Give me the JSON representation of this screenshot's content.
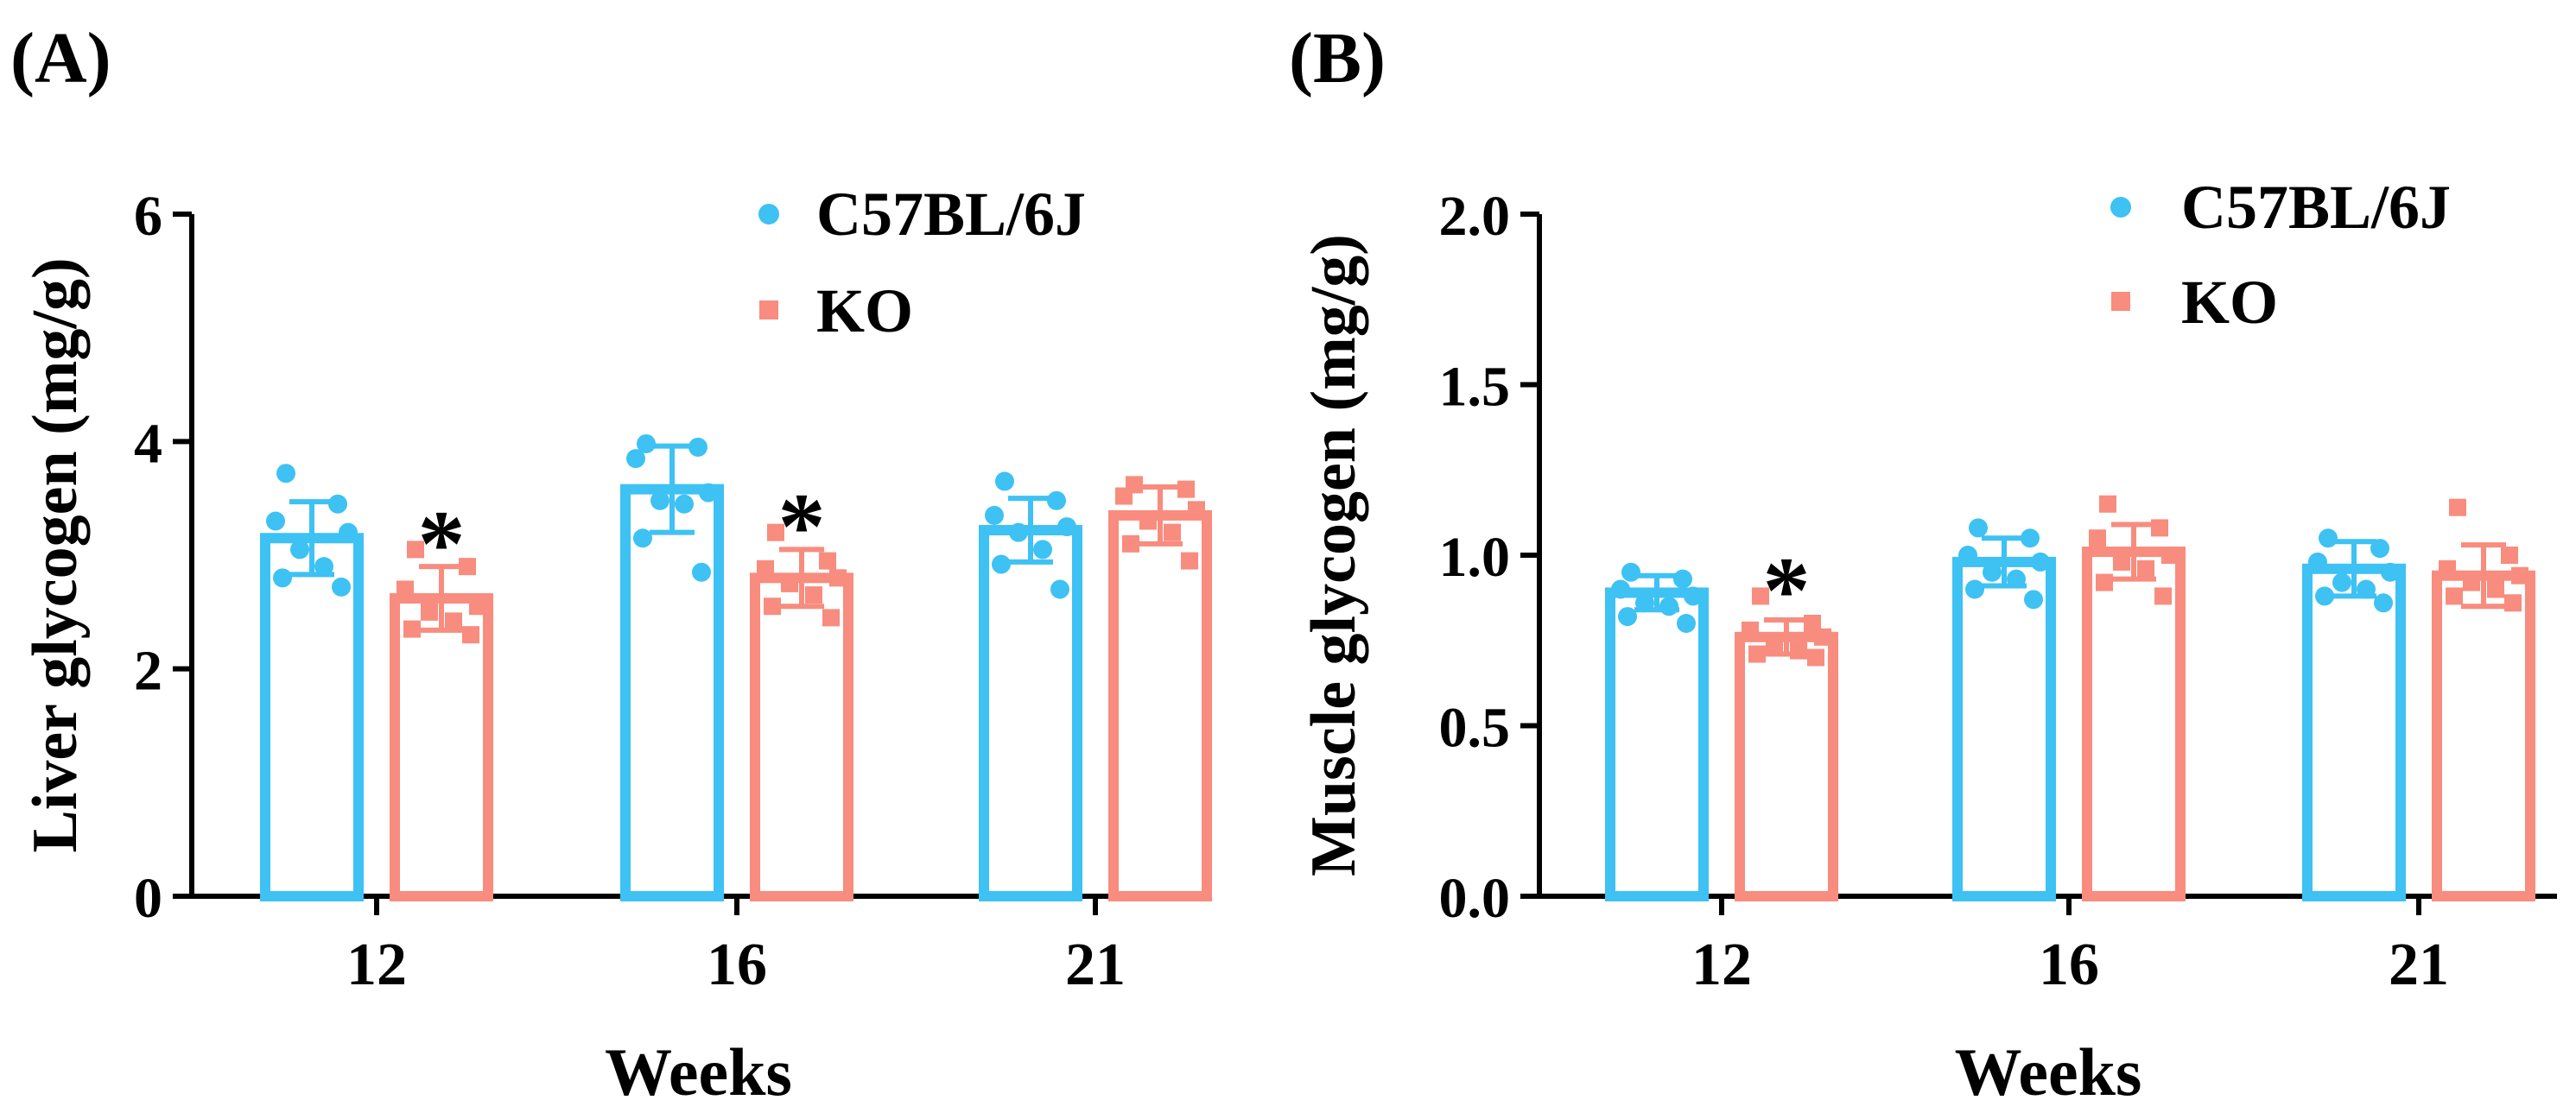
{
  "colors": {
    "wt": "#3ec1f3",
    "ko": "#f88c7e",
    "axis": "#000000"
  },
  "chart_data": [
    {
      "panel_label": "(A)",
      "type": "bar",
      "xlabel": "Weeks",
      "ylabel": "Liver glycogen (mg/g)",
      "ylim": [
        0,
        6
      ],
      "yticks": [
        "0",
        "2",
        "4",
        "6"
      ],
      "categories": [
        "12",
        "16",
        "21"
      ],
      "legend_position": "top-right",
      "series": [
        {
          "name": "C57BL/6J",
          "marker": "circle",
          "values": [
            3.15,
            3.58,
            3.22
          ],
          "sd": [
            0.32,
            0.38,
            0.28
          ],
          "points": [
            [
              3.72,
              3.45,
              3.3,
              3.2,
              3.05,
              2.9,
              2.8,
              2.72
            ],
            [
              3.98,
              3.95,
              3.85,
              3.55,
              3.48,
              3.45,
              3.15,
              2.85
            ],
            [
              3.65,
              3.48,
              3.35,
              3.25,
              3.2,
              3.05,
              2.92,
              2.7
            ]
          ]
        },
        {
          "name": "KO",
          "marker": "square",
          "values": [
            2.62,
            2.8,
            3.35
          ],
          "sd": [
            0.28,
            0.25,
            0.25
          ],
          "points": [
            [
              3.05,
              2.9,
              2.7,
              2.55,
              2.5,
              2.42,
              2.35,
              2.3
            ],
            [
              3.2,
              2.95,
              2.88,
              2.8,
              2.75,
              2.65,
              2.55,
              2.45
            ],
            [
              3.62,
              3.58,
              3.52,
              3.4,
              3.3,
              3.2,
              3.1,
              2.95
            ]
          ]
        }
      ],
      "annotations": [
        {
          "text": "*",
          "category": "12",
          "series": "KO"
        },
        {
          "text": "*",
          "category": "16",
          "series": "KO"
        }
      ]
    },
    {
      "panel_label": "(B)",
      "type": "bar",
      "xlabel": "Weeks",
      "ylabel": "Muscle glycogen (mg/g)",
      "ylim": [
        0,
        2.0
      ],
      "yticks": [
        "0.0",
        "0.5",
        "1.0",
        "1.5",
        "2.0"
      ],
      "categories": [
        "12",
        "16",
        "21"
      ],
      "legend_position": "top-right",
      "series": [
        {
          "name": "C57BL/6J",
          "marker": "circle",
          "values": [
            0.89,
            0.98,
            0.96
          ],
          "sd": [
            0.05,
            0.07,
            0.08
          ],
          "points": [
            [
              0.95,
              0.93,
              0.9,
              0.88,
              0.86,
              0.85,
              0.82,
              0.8
            ],
            [
              1.08,
              1.05,
              1.0,
              0.98,
              0.95,
              0.93,
              0.9,
              0.87
            ],
            [
              1.05,
              1.02,
              0.98,
              0.95,
              0.92,
              0.9,
              0.88,
              0.86
            ]
          ]
        },
        {
          "name": "KO",
          "marker": "square",
          "values": [
            0.76,
            1.01,
            0.94
          ],
          "sd": [
            0.05,
            0.08,
            0.09
          ],
          "points": [
            [
              0.88,
              0.8,
              0.78,
              0.76,
              0.74,
              0.72,
              0.71,
              0.7
            ],
            [
              1.15,
              1.08,
              1.05,
              1.0,
              0.98,
              0.96,
              0.92,
              0.88
            ],
            [
              1.14,
              1.0,
              0.96,
              0.94,
              0.92,
              0.9,
              0.88,
              0.86
            ]
          ]
        }
      ],
      "annotations": [
        {
          "text": "*",
          "category": "12",
          "series": "KO"
        }
      ]
    }
  ]
}
